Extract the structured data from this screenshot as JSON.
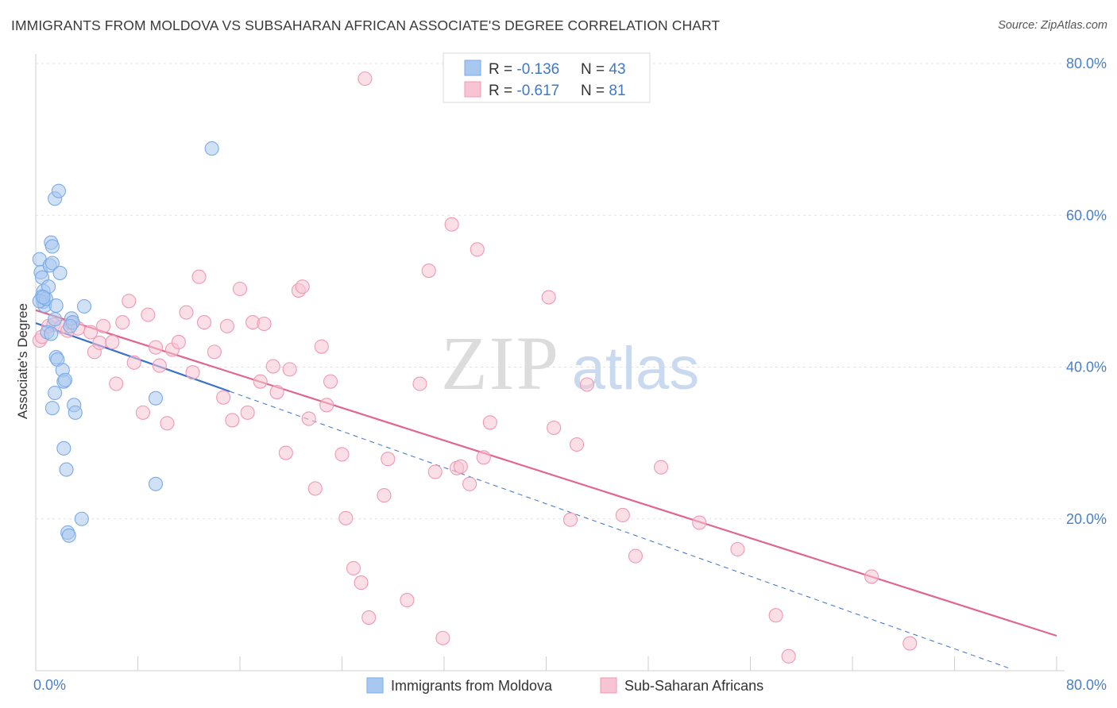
{
  "title": "IMMIGRANTS FROM MOLDOVA VS SUBSAHARAN AFRICAN ASSOCIATE'S DEGREE CORRELATION CHART",
  "source": "Source: ZipAtlas.com",
  "watermark": {
    "zip": "ZIP",
    "atlas": "atlas"
  },
  "legend_top": [
    {
      "r_label": "R = ",
      "r_value": "-0.136",
      "n_label": "N = ",
      "n_value": "43"
    },
    {
      "r_label": "R = ",
      "r_value": "-0.617",
      "n_label": "N = ",
      "n_value": "81"
    }
  ],
  "chart_data": {
    "type": "scatter",
    "title": "IMMIGRANTS FROM MOLDOVA VS SUBSAHARAN AFRICAN ASSOCIATE'S DEGREE CORRELATION CHART",
    "xlabel": "",
    "ylabel": "Associate's Degree",
    "xlim": [
      0,
      80
    ],
    "ylim": [
      0,
      80
    ],
    "x_tick_labels": [
      "0.0%",
      "80.0%"
    ],
    "y_ticks": [
      20,
      40,
      60,
      80
    ],
    "y_tick_labels": [
      "20.0%",
      "40.0%",
      "60.0%",
      "80.0%"
    ],
    "grid": true,
    "legend_position": "top-center",
    "series": [
      {
        "name": "Immigrants from Moldova",
        "color": "#7aaae8",
        "fill": "#a9c8ef",
        "line_color": "#3a72cc",
        "R": -0.136,
        "N": 43,
        "trend_solid": [
          [
            0,
            45.8
          ],
          [
            15.2,
            36.8
          ]
        ],
        "trend_dashed": [
          [
            15.2,
            36.8
          ],
          [
            76.5,
            0.2
          ]
        ],
        "points": [
          [
            0.3,
            54.2
          ],
          [
            0.4,
            52.5
          ],
          [
            0.5,
            51.8
          ],
          [
            0.6,
            50.0
          ],
          [
            0.5,
            49.3
          ],
          [
            0.6,
            48.6
          ],
          [
            0.7,
            48.1
          ],
          [
            0.3,
            48.7
          ],
          [
            0.8,
            49.0
          ],
          [
            1.0,
            50.6
          ],
          [
            1.1,
            53.4
          ],
          [
            1.3,
            53.7
          ],
          [
            1.2,
            56.4
          ],
          [
            1.3,
            55.9
          ],
          [
            1.5,
            62.2
          ],
          [
            1.8,
            63.2
          ],
          [
            1.6,
            48.1
          ],
          [
            1.9,
            52.4
          ],
          [
            1.5,
            46.3
          ],
          [
            0.9,
            44.6
          ],
          [
            1.2,
            44.4
          ],
          [
            1.6,
            41.3
          ],
          [
            1.7,
            41.0
          ],
          [
            2.1,
            39.6
          ],
          [
            2.2,
            38.1
          ],
          [
            2.3,
            38.3
          ],
          [
            1.5,
            36.6
          ],
          [
            1.3,
            34.6
          ],
          [
            3.0,
            35.0
          ],
          [
            3.1,
            34.0
          ],
          [
            2.2,
            29.3
          ],
          [
            2.4,
            26.5
          ],
          [
            2.5,
            18.2
          ],
          [
            2.6,
            17.8
          ],
          [
            3.6,
            20.0
          ],
          [
            3.8,
            48.0
          ],
          [
            2.8,
            46.4
          ],
          [
            2.9,
            45.9
          ],
          [
            2.7,
            45.4
          ],
          [
            9.4,
            35.9
          ],
          [
            9.4,
            24.6
          ],
          [
            13.8,
            68.8
          ],
          [
            0.6,
            49.2
          ]
        ]
      },
      {
        "name": "Sub-Saharan Africans",
        "color": "#f098b4",
        "fill": "#f7c4d4",
        "line_color": "#e0668f",
        "R": -0.617,
        "N": 81,
        "trend_solid": [
          [
            0,
            47.5
          ],
          [
            80,
            4.6
          ]
        ],
        "points": [
          [
            0.3,
            43.5
          ],
          [
            0.5,
            44.0
          ],
          [
            1.0,
            45.4
          ],
          [
            1.4,
            45.6
          ],
          [
            2.0,
            45.3
          ],
          [
            2.5,
            44.8
          ],
          [
            2.8,
            45.8
          ],
          [
            3.3,
            45.1
          ],
          [
            4.3,
            44.6
          ],
          [
            4.6,
            42.0
          ],
          [
            5.0,
            43.2
          ],
          [
            5.3,
            45.4
          ],
          [
            6.0,
            43.3
          ],
          [
            6.3,
            37.8
          ],
          [
            6.8,
            45.9
          ],
          [
            7.3,
            48.7
          ],
          [
            7.7,
            40.6
          ],
          [
            8.4,
            34.0
          ],
          [
            8.8,
            46.9
          ],
          [
            9.4,
            42.6
          ],
          [
            9.7,
            40.2
          ],
          [
            10.3,
            32.6
          ],
          [
            10.7,
            42.3
          ],
          [
            11.2,
            43.3
          ],
          [
            11.8,
            47.2
          ],
          [
            12.3,
            39.3
          ],
          [
            12.8,
            51.9
          ],
          [
            13.2,
            45.9
          ],
          [
            14.0,
            42.0
          ],
          [
            14.7,
            36.0
          ],
          [
            15.0,
            45.4
          ],
          [
            15.4,
            33.0
          ],
          [
            16.0,
            50.3
          ],
          [
            16.6,
            34.0
          ],
          [
            17.0,
            45.9
          ],
          [
            17.6,
            38.1
          ],
          [
            17.9,
            45.7
          ],
          [
            18.6,
            40.1
          ],
          [
            18.9,
            36.7
          ],
          [
            19.6,
            28.7
          ],
          [
            19.9,
            39.7
          ],
          [
            20.6,
            50.1
          ],
          [
            20.9,
            50.6
          ],
          [
            21.4,
            33.2
          ],
          [
            21.9,
            24.0
          ],
          [
            22.4,
            42.7
          ],
          [
            22.8,
            35.0
          ],
          [
            23.1,
            38.1
          ],
          [
            24.0,
            28.5
          ],
          [
            24.3,
            20.1
          ],
          [
            24.9,
            13.5
          ],
          [
            25.5,
            11.6
          ],
          [
            25.8,
            78.0
          ],
          [
            26.1,
            7.0
          ],
          [
            27.3,
            23.1
          ],
          [
            27.6,
            27.9
          ],
          [
            29.1,
            9.3
          ],
          [
            30.1,
            37.8
          ],
          [
            30.8,
            52.7
          ],
          [
            31.3,
            26.2
          ],
          [
            31.9,
            4.3
          ],
          [
            32.6,
            58.8
          ],
          [
            33.0,
            26.7
          ],
          [
            33.3,
            26.9
          ],
          [
            34.0,
            24.6
          ],
          [
            34.6,
            55.5
          ],
          [
            35.1,
            28.1
          ],
          [
            35.6,
            32.7
          ],
          [
            40.2,
            49.2
          ],
          [
            40.6,
            32.0
          ],
          [
            41.9,
            19.9
          ],
          [
            42.4,
            29.8
          ],
          [
            43.2,
            37.7
          ],
          [
            46.0,
            20.5
          ],
          [
            47.0,
            15.1
          ],
          [
            49.0,
            26.8
          ],
          [
            52.0,
            19.5
          ],
          [
            55.0,
            16.0
          ],
          [
            58.0,
            7.3
          ],
          [
            59.0,
            1.9
          ],
          [
            68.5,
            3.6
          ],
          [
            65.5,
            12.4
          ]
        ]
      }
    ]
  }
}
